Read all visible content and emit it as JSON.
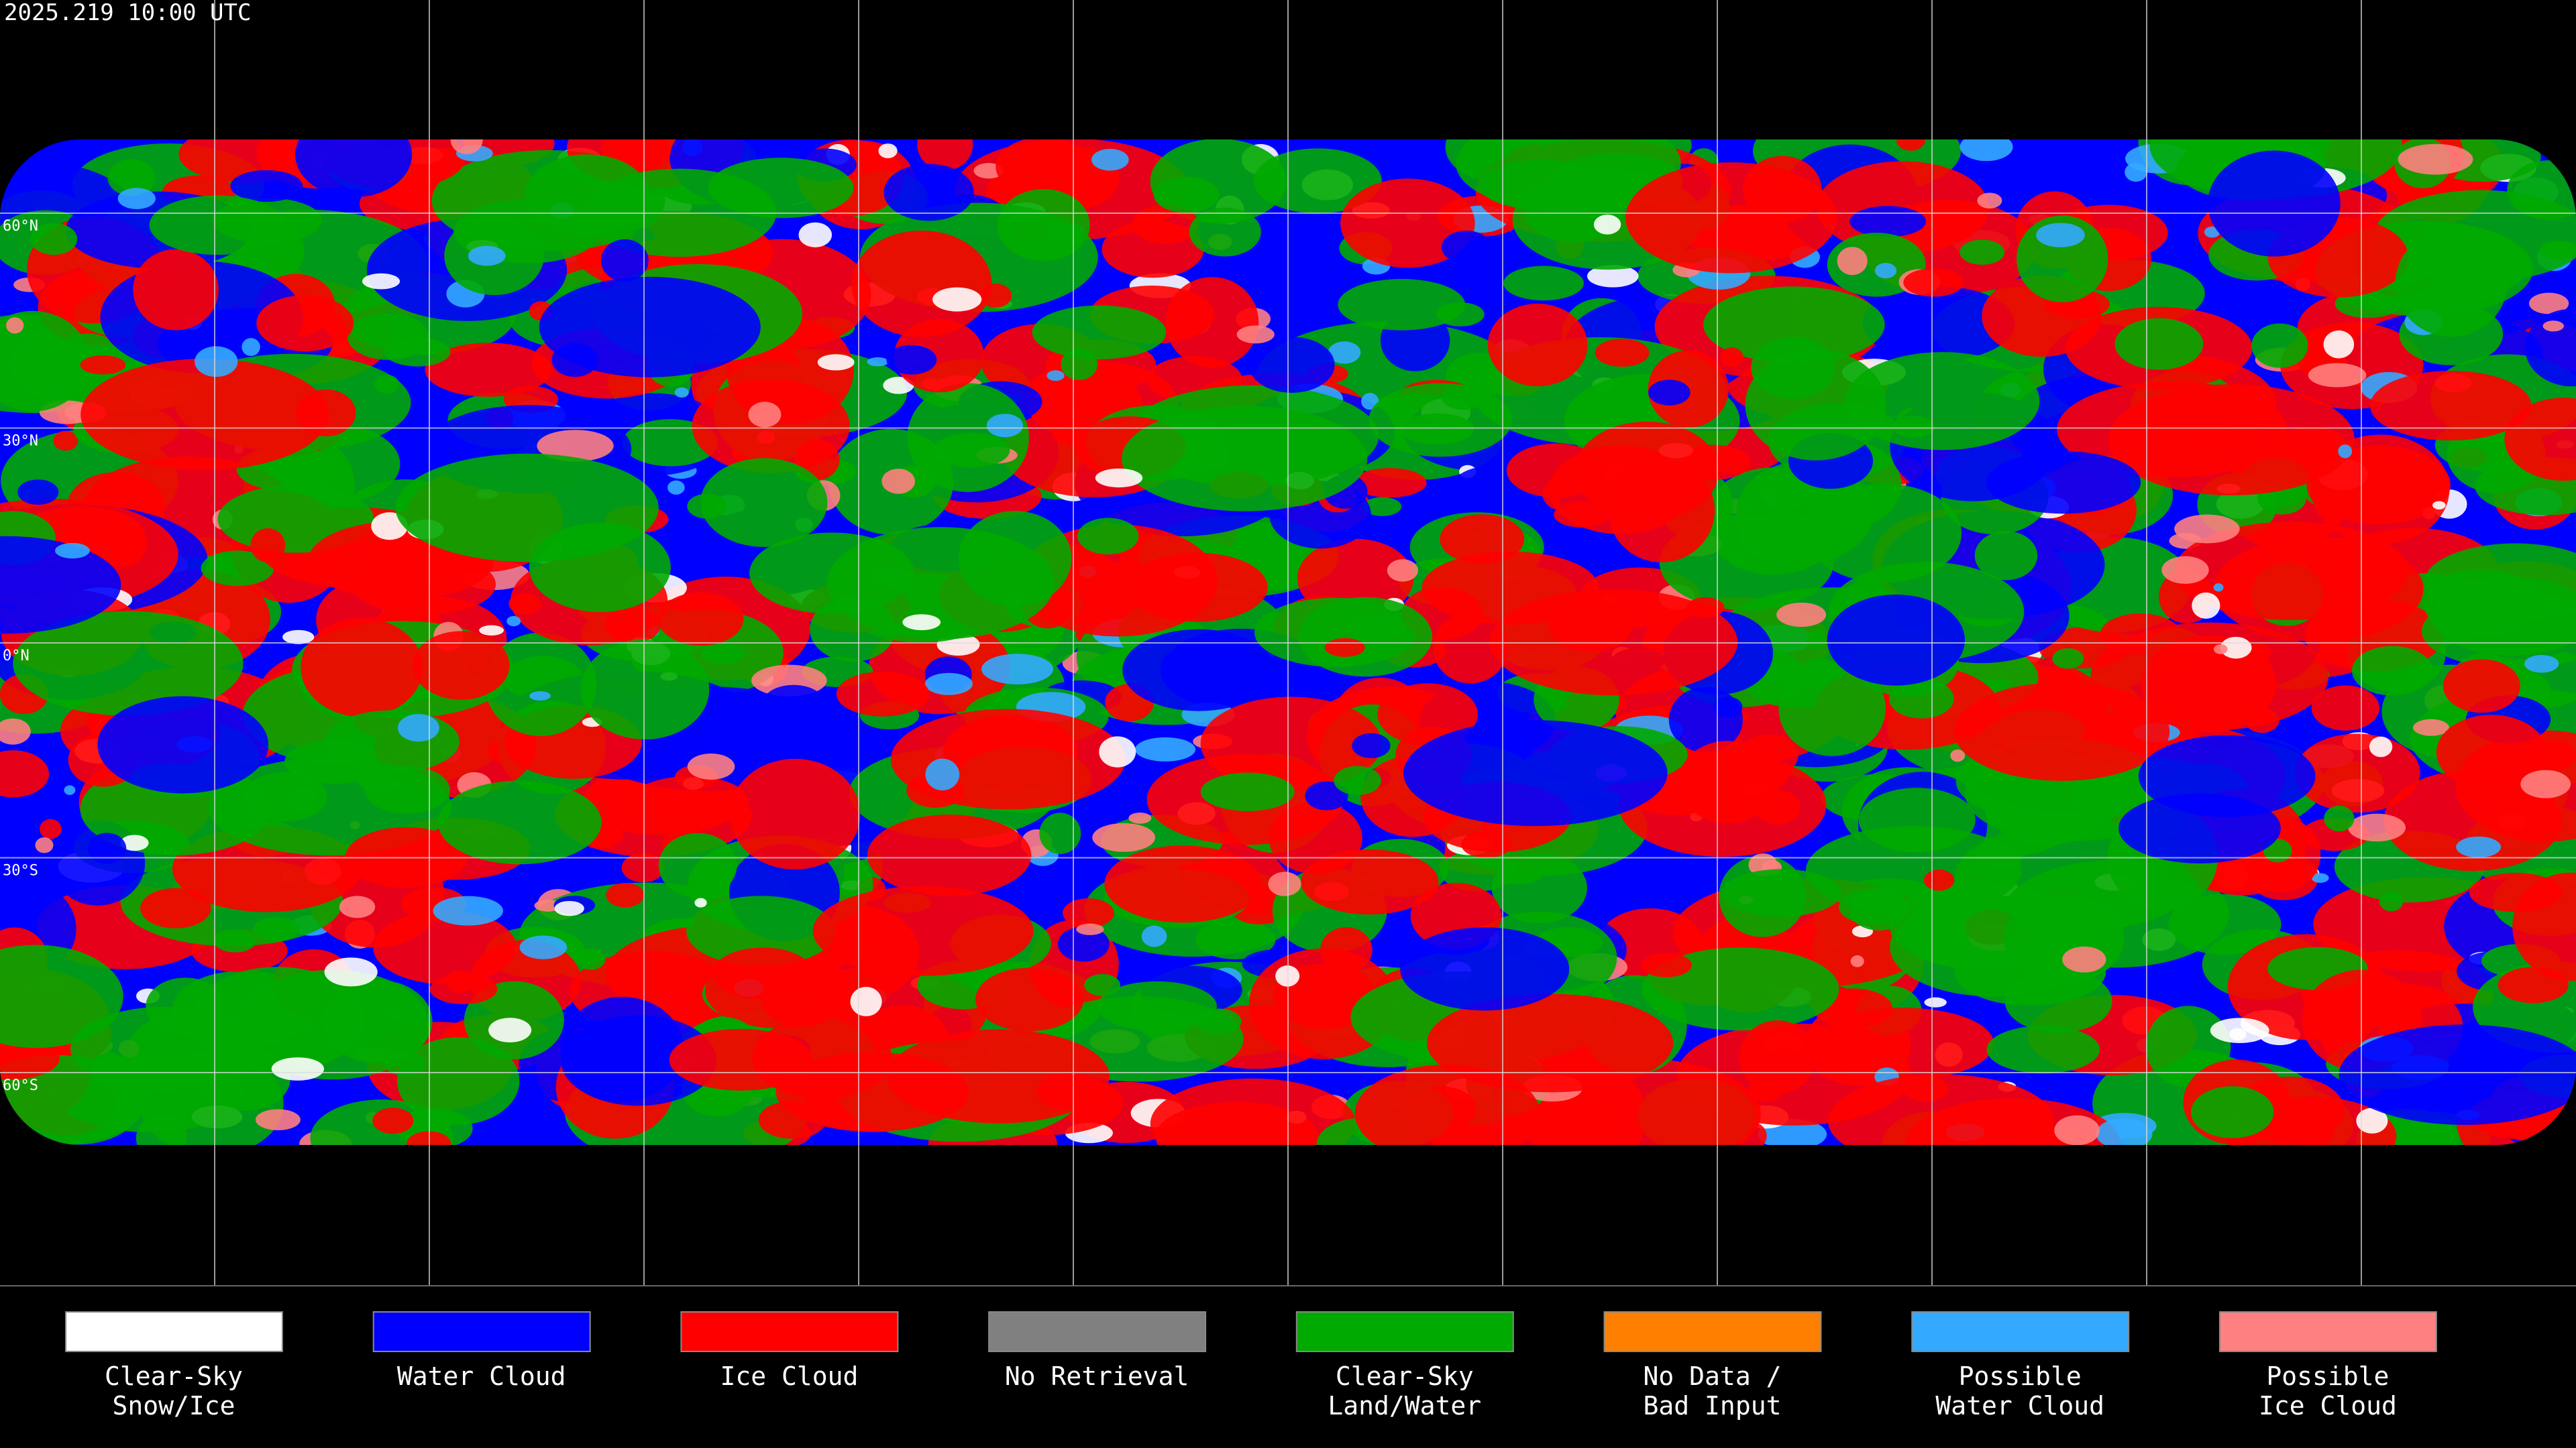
{
  "header": {
    "timestamp": "2025.219 10:00 UTC"
  },
  "map": {
    "latitude_labels": [
      "60°N",
      "30°N",
      "0°N",
      "30°S",
      "60°S"
    ]
  },
  "legend": {
    "items": [
      {
        "lines": [
          "Clear-Sky",
          "Snow/Ice"
        ],
        "color": "#ffffff"
      },
      {
        "lines": [
          "Water Cloud"
        ],
        "color": "#0000ff"
      },
      {
        "lines": [
          "Ice Cloud"
        ],
        "color": "#ff0000"
      },
      {
        "lines": [
          "No Retrieval"
        ],
        "color": "#808080"
      },
      {
        "lines": [
          "Clear-Sky",
          "Land/Water"
        ],
        "color": "#00aa00"
      },
      {
        "lines": [
          "No Data /",
          "Bad Input"
        ],
        "color": "#ff8000"
      },
      {
        "lines": [
          "Possible",
          "Water Cloud"
        ],
        "color": "#33aaff"
      },
      {
        "lines": [
          "Possible",
          "Ice Cloud"
        ],
        "color": "#ff8080"
      }
    ]
  }
}
